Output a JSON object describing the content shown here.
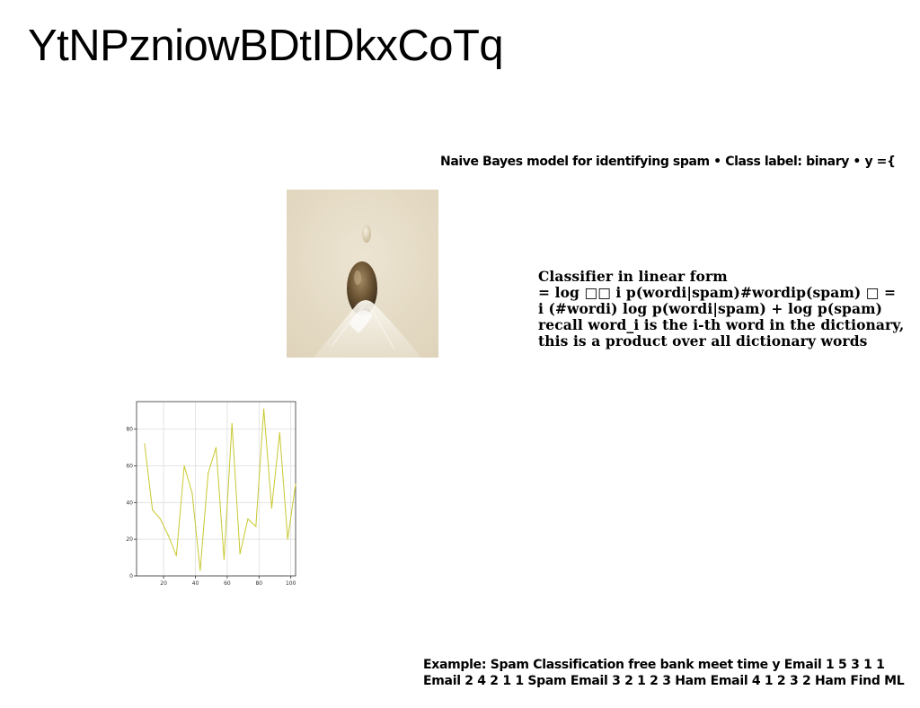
{
  "title": "YtNPzniowBDtIDkxCoTq",
  "subtitle": "Naive Bayes model for identifying spam • Class label: binary • y ={",
  "image": {
    "description_icon": "egg-drop-photo-icon"
  },
  "classifier": {
    "lines": [
      "Classifier in linear form",
      "= log □□ i p(wordi|spam)#wordip(spam) □ =",
      "i (#wordi) log p(wordi|spam) + log p(spam)",
      "recall word_i is the i-th word in the dictionary,",
      "this is a product over all dictionary words"
    ]
  },
  "example": {
    "lines": [
      "Example: Spam Classification free bank meet time y Email 1 5 3 1 1",
      "Email 2 4 2 1 1 Spam Email 3 2 1 2 3 Ham Email 4 1 2 3 2 Ham Find ML"
    ]
  },
  "colors": {
    "line": "#c8c832",
    "photo_bg": "#e6dcc6"
  },
  "chart_data": {
    "type": "line",
    "title": "",
    "xlabel": "",
    "ylabel": "",
    "xlim": [
      3,
      103
    ],
    "ylim": [
      0,
      95
    ],
    "xticks": [
      20,
      40,
      60,
      80,
      100
    ],
    "yticks": [
      0,
      20,
      40,
      60,
      80
    ],
    "grid": true,
    "series": [
      {
        "x": [
          8,
          13,
          18,
          23,
          28,
          33,
          38,
          43,
          48,
          53,
          58,
          63,
          68,
          73,
          78,
          83,
          88,
          93,
          98,
          103
        ],
        "y": [
          72,
          36,
          31,
          22,
          11,
          60,
          45,
          3,
          56,
          70,
          9,
          83,
          12,
          31,
          27,
          91,
          37,
          78,
          20,
          50
        ]
      }
    ]
  }
}
